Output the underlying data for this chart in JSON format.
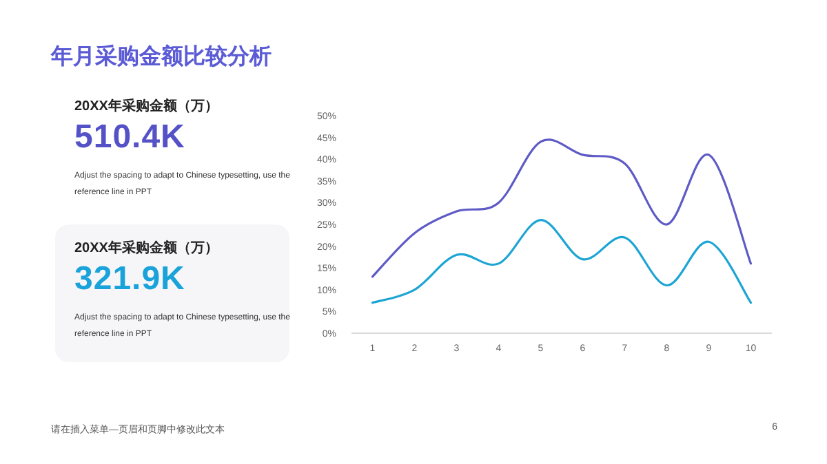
{
  "chart_data": [
    {
      "type": "other",
      "title": "20XX年采购金额（万）",
      "subtitle": "510.4K",
      "colors": [
        "#5552c8"
      ],
      "annotations": [
        "Adjust the spacing to adapt to Chinese typesetting, use the reference line in PPT"
      ]
    },
    {
      "type": "other",
      "title": "20XX年采购金额（万）",
      "subtitle": "321.9K",
      "colors": [
        "#1aa3da"
      ],
      "annotations": [
        "Adjust the spacing to adapt to Chinese typesetting, use the reference line in PPT"
      ]
    },
    {
      "type": "line",
      "title": "年月采购金额比较分析",
      "categories": [
        "1",
        "2",
        "3",
        "4",
        "5",
        "6",
        "7",
        "8",
        "9",
        "10"
      ],
      "series": [
        {
          "color": "#5e5ac6",
          "values": [
            13,
            23,
            28,
            30,
            44,
            41,
            39,
            25,
            41,
            16
          ]
        },
        {
          "color": "#1ca5d4",
          "values": [
            7,
            10,
            18,
            16,
            26,
            17,
            22,
            11,
            21,
            7
          ]
        }
      ],
      "ylim": [
        0,
        50
      ],
      "yticks": [
        {
          "value": 0,
          "label": "0%"
        },
        {
          "value": 5,
          "label": "5%"
        },
        {
          "value": 10,
          "label": "10%"
        },
        {
          "value": 15,
          "label": "15%"
        },
        {
          "value": 20,
          "label": "20%"
        },
        {
          "value": 25,
          "label": "25%"
        },
        {
          "value": 30,
          "label": "30%"
        },
        {
          "value": 35,
          "label": "35%"
        },
        {
          "value": 40,
          "label": "40%"
        },
        {
          "value": 45,
          "label": "45%"
        },
        {
          "value": 50,
          "label": "50%"
        }
      ],
      "grid": false,
      "marker": "none",
      "line_style": "solid",
      "annotations": [
        "请在插入菜单—页眉和页脚中修改此文本",
        "6"
      ]
    }
  ]
}
